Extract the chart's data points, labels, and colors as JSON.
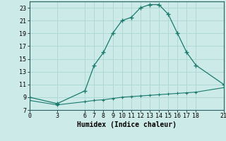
{
  "xlabel": "Humidex (Indice chaleur)",
  "bg_color": "#cceae7",
  "grid_color": "#b0d8d4",
  "line_color": "#1a7a6e",
  "upper_x": [
    0,
    3,
    6,
    7,
    8,
    9,
    10,
    11,
    12,
    13,
    14,
    15,
    16,
    17,
    18,
    21
  ],
  "upper_y": [
    9,
    8,
    10,
    14,
    16,
    19,
    21,
    21.5,
    23,
    23.5,
    23.5,
    22,
    19,
    16,
    14,
    11
  ],
  "lower_x": [
    0,
    3,
    6,
    7,
    8,
    9,
    10,
    11,
    12,
    13,
    14,
    15,
    16,
    17,
    18,
    21
  ],
  "lower_y": [
    8.5,
    7.8,
    8.3,
    8.5,
    8.6,
    8.8,
    9.0,
    9.1,
    9.2,
    9.3,
    9.4,
    9.5,
    9.6,
    9.7,
    9.8,
    10.5
  ],
  "xlim": [
    0,
    21
  ],
  "ylim": [
    7,
    24
  ],
  "xticks": [
    0,
    3,
    6,
    7,
    8,
    9,
    10,
    11,
    12,
    13,
    14,
    15,
    16,
    17,
    18,
    21
  ],
  "yticks": [
    7,
    9,
    11,
    13,
    15,
    17,
    19,
    21,
    23
  ],
  "tick_fontsize": 6,
  "xlabel_fontsize": 7
}
